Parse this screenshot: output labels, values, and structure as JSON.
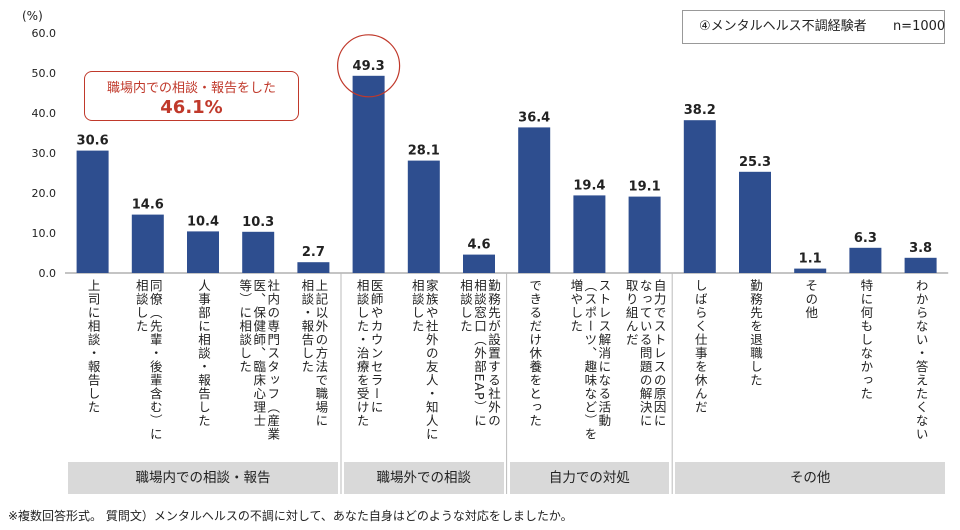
{
  "chart_data": {
    "type": "bar",
    "y_unit": "(%)",
    "ylim": [
      0,
      60
    ],
    "yticks": [
      "60.0",
      "50.0",
      "40.0",
      "30.0",
      "20.0",
      "10.0",
      "0.0"
    ],
    "grid": false,
    "bar_color": "#2e4e8f",
    "categories": [
      [
        "上司に相談・報告した"
      ],
      [
        "同僚（先輩・後輩含む）に",
        "相談した"
      ],
      [
        "人事部に相談・報告した"
      ],
      [
        "社内の専門スタッフ（産業",
        "医、保健師、臨床心理士",
        "等）に相談した"
      ],
      [
        "上記以外の方法で職場に",
        "相談・報告した"
      ],
      [
        "医師やカウンセラーに",
        "相談した・治療を受けた"
      ],
      [
        "家族や社外の友人・知人に",
        "相談した"
      ],
      [
        "勤務先が設置する社外の",
        "相談窓口（外部EAP）に",
        "相談した"
      ],
      [
        "できるだけ休養をとった"
      ],
      [
        "ストレス解消になる活動",
        "（スポーツ、趣味など）を",
        "増やした"
      ],
      [
        "自力でストレスの原因に",
        "なっている問題の解決に",
        "取り組んだ"
      ],
      [
        "しばらく仕事を休んだ"
      ],
      [
        "勤務先を退職した"
      ],
      [
        "その他"
      ],
      [
        "特に何もしなかった"
      ],
      [
        "わからない・答えたくない"
      ]
    ],
    "values": [
      30.6,
      14.6,
      10.4,
      10.3,
      2.7,
      49.3,
      28.1,
      4.6,
      36.4,
      19.4,
      19.1,
      38.2,
      25.3,
      1.1,
      6.3,
      3.8
    ],
    "value_labels": [
      "30.6",
      "14.6",
      "10.4",
      "10.3",
      "2.7",
      "49.3",
      "28.1",
      "4.6",
      "36.4",
      "19.4",
      "19.1",
      "38.2",
      "25.3",
      "1.1",
      "6.3",
      "3.8"
    ],
    "highlighted_index": 5,
    "highlight_color": "#c0392b",
    "groups": [
      {
        "label": "職場内での相談・報告",
        "start": 0,
        "end": 4
      },
      {
        "label": "職場外での相談",
        "start": 5,
        "end": 7
      },
      {
        "label": "自力での対処",
        "start": 8,
        "end": 10
      },
      {
        "label": "その他",
        "start": 11,
        "end": 15
      }
    ]
  },
  "legend": {
    "title": "④メンタルヘルス不調経験者",
    "n_label": "n=1000"
  },
  "callout": {
    "line1": "職場内での相談・報告をした",
    "line2": "46.1%"
  },
  "footnote": "※複数回答形式。 質問文）メンタルヘルスの不調に対して、あなた自身はどのような対応をしましたか。"
}
